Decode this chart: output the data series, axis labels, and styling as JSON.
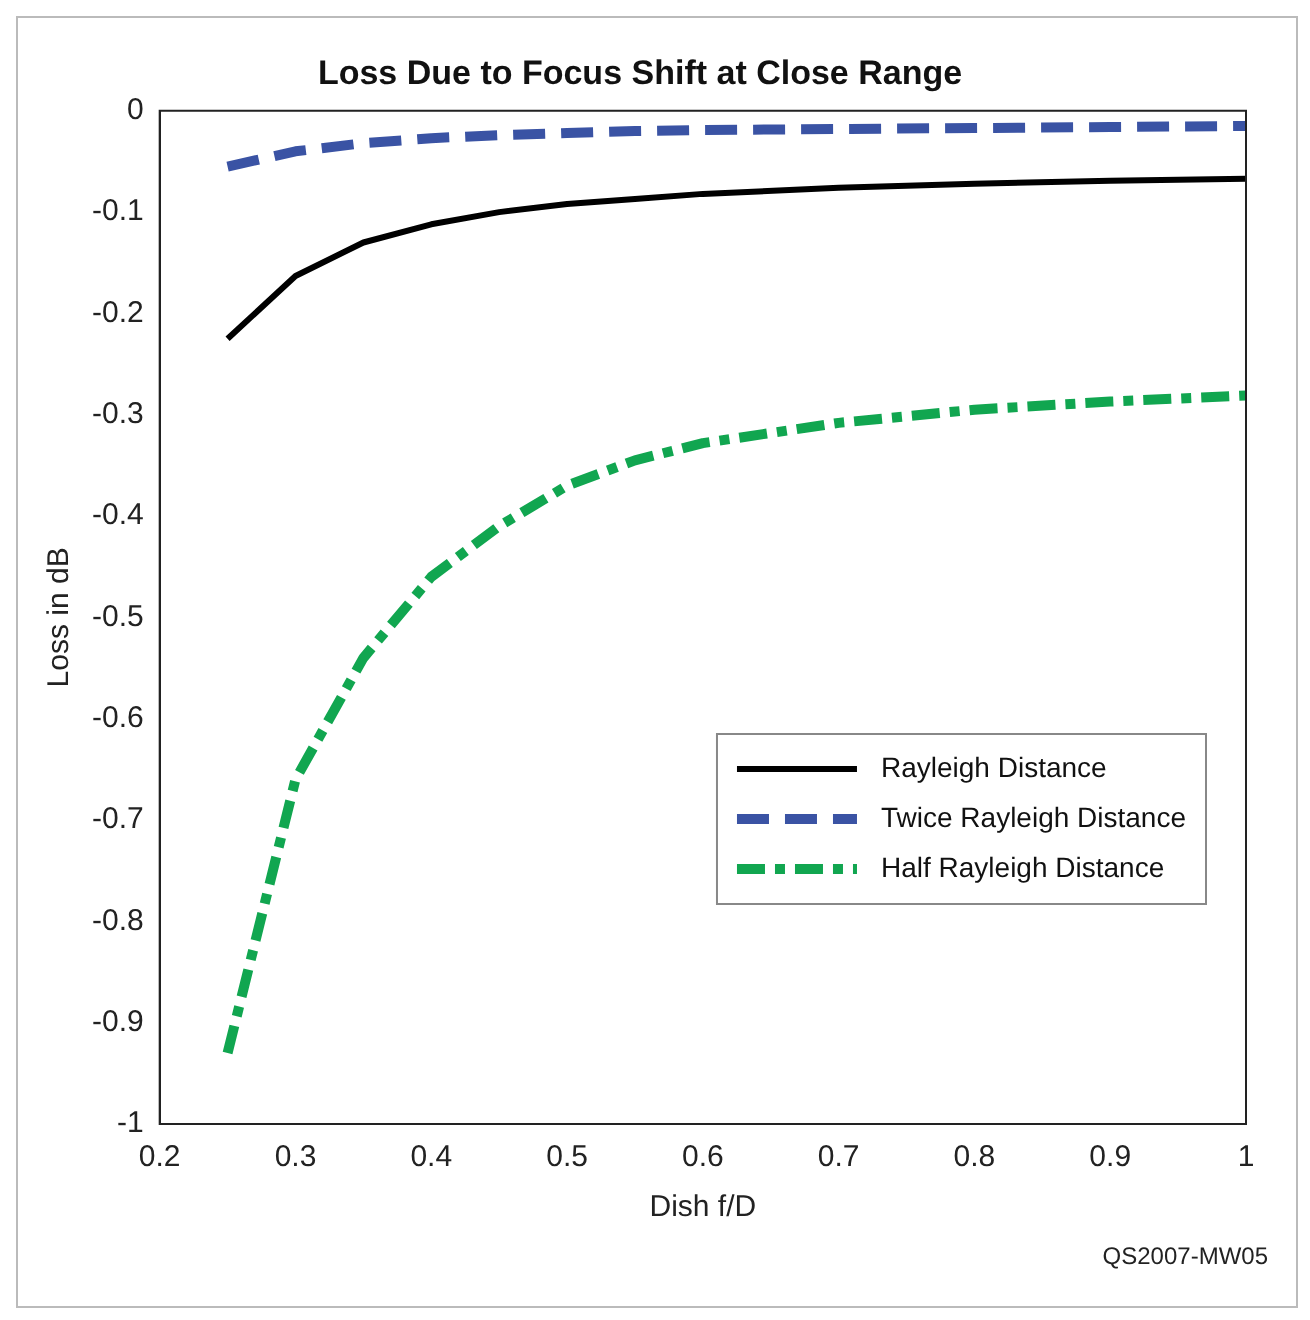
{
  "chart_data": {
    "type": "line",
    "title": "Loss Due to Focus Shift at Close Range",
    "xlabel": "Dish f/D",
    "ylabel": "Loss in dB",
    "x": [
      0.25,
      0.3,
      0.35,
      0.4,
      0.45,
      0.5,
      0.55,
      0.6,
      0.7,
      0.8,
      0.9,
      1.0
    ],
    "series": [
      {
        "name": "Rayleigh Distance",
        "color": "#000000",
        "line_style": "solid",
        "values": [
          -0.225,
          -0.163,
          -0.13,
          -0.112,
          -0.1,
          -0.092,
          -0.087,
          -0.082,
          -0.076,
          -0.072,
          -0.069,
          -0.067
        ]
      },
      {
        "name": "Twice Rayleigh Distance",
        "color": "#3a53a4",
        "line_style": "dashed",
        "values": [
          -0.055,
          -0.04,
          -0.032,
          -0.027,
          -0.024,
          -0.022,
          -0.02,
          -0.019,
          -0.018,
          -0.017,
          -0.016,
          -0.015
        ]
      },
      {
        "name": "Half Rayleigh Distance",
        "color": "#11a650",
        "line_style": "dashdot",
        "values": [
          -0.93,
          -0.66,
          -0.54,
          -0.46,
          -0.41,
          -0.37,
          -0.345,
          -0.328,
          -0.308,
          -0.295,
          -0.287,
          -0.281
        ]
      }
    ],
    "xlim": [
      0.2,
      1
    ],
    "xticks": [
      0.2,
      0.3,
      0.4,
      0.5,
      0.6,
      0.7,
      0.8,
      0.9,
      1
    ],
    "ylim": [
      -1,
      0
    ],
    "yticks": [
      -1,
      -0.9,
      -0.8,
      -0.7,
      -0.6,
      -0.5,
      -0.4,
      -0.3,
      -0.2,
      -0.1,
      0
    ],
    "grid": false,
    "legend": "bottom right",
    "marker": "none",
    "annotations": [
      "QS2007-MW05"
    ]
  }
}
